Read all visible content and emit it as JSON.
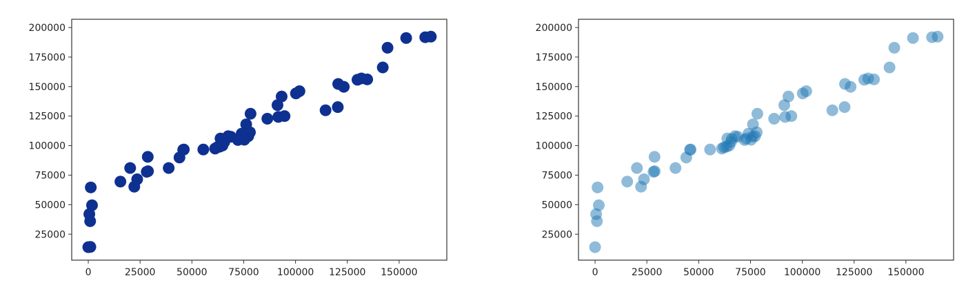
{
  "chart_data": [
    {
      "type": "scatter",
      "xlim": [
        -8000,
        173000
      ],
      "ylim": [
        3000,
        207000
      ],
      "xticks": [
        0,
        25000,
        50000,
        75000,
        100000,
        125000,
        150000
      ],
      "yticks": [
        25000,
        50000,
        75000,
        100000,
        125000,
        150000,
        175000,
        200000
      ],
      "xtick_labels": [
        "0",
        "25000",
        "50000",
        "75000",
        "100000",
        "125000",
        "150000"
      ],
      "ytick_labels": [
        "25000",
        "50000",
        "75000",
        "100000",
        "125000",
        "150000",
        "175000",
        "200000"
      ],
      "grid": false,
      "marker_color": "#0e3191",
      "marker_opacity": 1.0,
      "points": [
        [
          0,
          14000
        ],
        [
          1000,
          14200
        ],
        [
          500,
          42000
        ],
        [
          900,
          36000
        ],
        [
          1200,
          64600
        ],
        [
          1800,
          49500
        ],
        [
          15500,
          69500
        ],
        [
          20200,
          81000
        ],
        [
          22200,
          65200
        ],
        [
          23600,
          71500
        ],
        [
          28200,
          77800
        ],
        [
          28800,
          78300
        ],
        [
          28700,
          90500
        ],
        [
          38800,
          81000
        ],
        [
          44000,
          89900
        ],
        [
          45800,
          96500
        ],
        [
          46100,
          96700
        ],
        [
          55500,
          96700
        ],
        [
          61200,
          97500
        ],
        [
          62200,
          98600
        ],
        [
          63400,
          99100
        ],
        [
          63800,
          106000
        ],
        [
          64700,
          100000
        ],
        [
          65600,
          103000
        ],
        [
          66000,
          105700
        ],
        [
          67500,
          108000
        ],
        [
          68800,
          107500
        ],
        [
          72200,
          104800
        ],
        [
          73000,
          106000
        ],
        [
          74000,
          110100
        ],
        [
          75300,
          105000
        ],
        [
          76000,
          107800
        ],
        [
          76200,
          118000
        ],
        [
          77200,
          108000
        ],
        [
          78000,
          111300
        ],
        [
          78300,
          127000
        ],
        [
          86400,
          122800
        ],
        [
          91700,
          124300
        ],
        [
          91300,
          134300
        ],
        [
          93300,
          141600
        ],
        [
          94700,
          125000
        ],
        [
          100200,
          144200
        ],
        [
          101900,
          146100
        ],
        [
          114500,
          129900
        ],
        [
          120400,
          132600
        ],
        [
          120600,
          152200
        ],
        [
          123300,
          149800
        ],
        [
          129900,
          155800
        ],
        [
          131800,
          156900
        ],
        [
          134600,
          156100
        ],
        [
          142100,
          166200
        ],
        [
          144400,
          182900
        ],
        [
          153400,
          191100
        ],
        [
          162600,
          191800
        ],
        [
          165300,
          192300
        ]
      ]
    },
    {
      "type": "scatter",
      "xlim": [
        -8000,
        173000
      ],
      "ylim": [
        3000,
        207000
      ],
      "xticks": [
        0,
        25000,
        50000,
        75000,
        100000,
        125000,
        150000
      ],
      "yticks": [
        25000,
        50000,
        75000,
        100000,
        125000,
        150000,
        175000,
        200000
      ],
      "xtick_labels": [
        "0",
        "25000",
        "50000",
        "75000",
        "100000",
        "125000",
        "150000"
      ],
      "ytick_labels": [
        "25000",
        "50000",
        "75000",
        "100000",
        "125000",
        "150000",
        "175000",
        "200000"
      ],
      "grid": false,
      "marker_color": "#1f77b4",
      "marker_opacity": 0.5,
      "points": [
        [
          0,
          14000
        ],
        [
          500,
          42000
        ],
        [
          900,
          36000
        ],
        [
          1200,
          64600
        ],
        [
          1800,
          49500
        ],
        [
          15500,
          69500
        ],
        [
          20200,
          81000
        ],
        [
          22200,
          65200
        ],
        [
          23600,
          71500
        ],
        [
          28200,
          77800
        ],
        [
          28800,
          78300
        ],
        [
          28700,
          90500
        ],
        [
          38800,
          81000
        ],
        [
          44000,
          89900
        ],
        [
          45800,
          96500
        ],
        [
          46100,
          96700
        ],
        [
          55500,
          96700
        ],
        [
          61200,
          97500
        ],
        [
          62200,
          98600
        ],
        [
          63400,
          99100
        ],
        [
          63800,
          106000
        ],
        [
          64700,
          100000
        ],
        [
          65600,
          103000
        ],
        [
          66000,
          105700
        ],
        [
          67500,
          108000
        ],
        [
          68800,
          107500
        ],
        [
          72200,
          104800
        ],
        [
          73000,
          106000
        ],
        [
          74000,
          110100
        ],
        [
          75300,
          105000
        ],
        [
          76000,
          107800
        ],
        [
          76200,
          118000
        ],
        [
          77200,
          108000
        ],
        [
          78000,
          111300
        ],
        [
          78300,
          127000
        ],
        [
          86400,
          122800
        ],
        [
          91700,
          124300
        ],
        [
          91300,
          134300
        ],
        [
          93300,
          141600
        ],
        [
          94700,
          125000
        ],
        [
          100200,
          144200
        ],
        [
          101900,
          146100
        ],
        [
          114500,
          129900
        ],
        [
          120400,
          132600
        ],
        [
          120600,
          152200
        ],
        [
          123300,
          149800
        ],
        [
          129900,
          155800
        ],
        [
          131800,
          156900
        ],
        [
          134600,
          156100
        ],
        [
          142100,
          166200
        ],
        [
          144400,
          182900
        ],
        [
          153400,
          191100
        ],
        [
          162600,
          191800
        ],
        [
          165300,
          192300
        ]
      ]
    }
  ]
}
